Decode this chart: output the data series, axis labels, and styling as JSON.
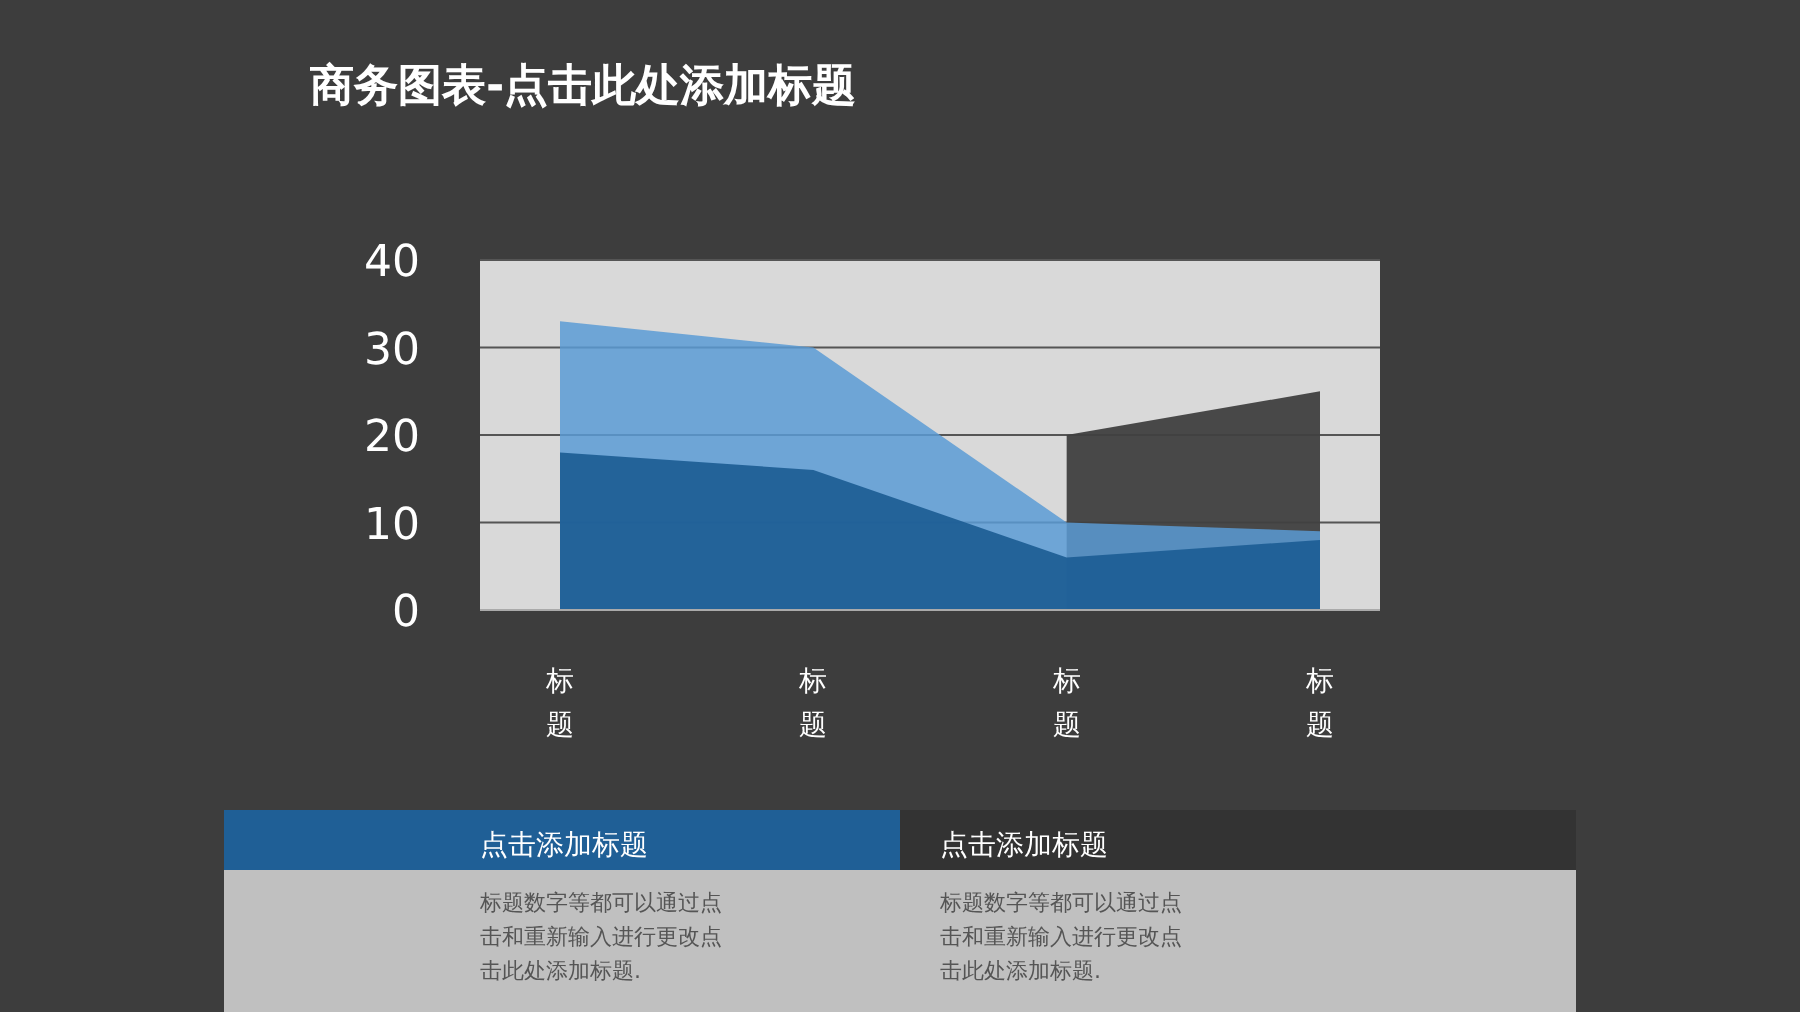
{
  "chart_data": {
    "type": "area",
    "title": "商务图表-点击此处添加标题",
    "categories": [
      "标题",
      "标题",
      "标题",
      "标题"
    ],
    "series": [
      {
        "color": "#404040",
        "values": [
          null,
          null,
          20,
          25
        ]
      },
      {
        "color": "#5b9bd5",
        "values": [
          33,
          30,
          10,
          9
        ]
      },
      {
        "color": "#1f5f96",
        "values": [
          18,
          16,
          6,
          8
        ]
      }
    ],
    "ylim": [
      0,
      40
    ],
    "yticks": [
      0,
      10,
      20,
      30,
      40
    ],
    "grid": "y",
    "annotations": [
      "点击添加标题",
      "标题数字等都可以通过点击和重新输入进行更改点击此处添加标题.",
      "点击添加标题",
      "标题数字等都可以通过点击和重新输入进行更改点击此处添加标题."
    ]
  }
}
